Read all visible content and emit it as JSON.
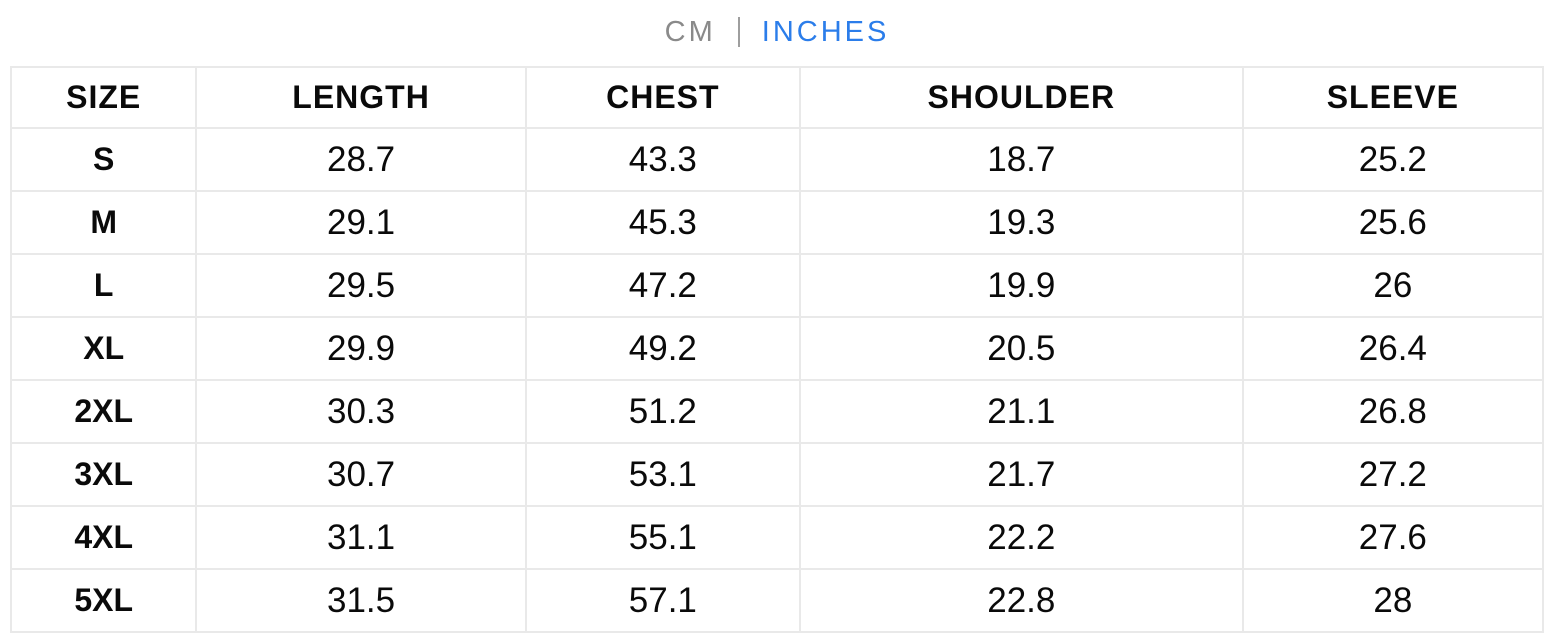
{
  "unit_toggle": {
    "cm_label": "CM",
    "inches_label": "INCHES",
    "active_unit": "INCHES",
    "inactive_color": "#8a8a8a",
    "active_color": "#2b7dea"
  },
  "table": {
    "border_color": "#e9e9e9",
    "columns": [
      "SIZE",
      "LENGTH",
      "CHEST",
      "SHOULDER",
      "SLEEVE"
    ],
    "rows": [
      {
        "size": "S",
        "length": "28.7",
        "chest": "43.3",
        "shoulder": "18.7",
        "sleeve": "25.2"
      },
      {
        "size": "M",
        "length": "29.1",
        "chest": "45.3",
        "shoulder": "19.3",
        "sleeve": "25.6"
      },
      {
        "size": "L",
        "length": "29.5",
        "chest": "47.2",
        "shoulder": "19.9",
        "sleeve": "26"
      },
      {
        "size": "XL",
        "length": "29.9",
        "chest": "49.2",
        "shoulder": "20.5",
        "sleeve": "26.4"
      },
      {
        "size": "2XL",
        "length": "30.3",
        "chest": "51.2",
        "shoulder": "21.1",
        "sleeve": "26.8"
      },
      {
        "size": "3XL",
        "length": "30.7",
        "chest": "53.1",
        "shoulder": "21.7",
        "sleeve": "27.2"
      },
      {
        "size": "4XL",
        "length": "31.1",
        "chest": "55.1",
        "shoulder": "22.2",
        "sleeve": "27.6"
      },
      {
        "size": "5XL",
        "length": "31.5",
        "chest": "57.1",
        "shoulder": "22.8",
        "sleeve": "28"
      }
    ]
  }
}
